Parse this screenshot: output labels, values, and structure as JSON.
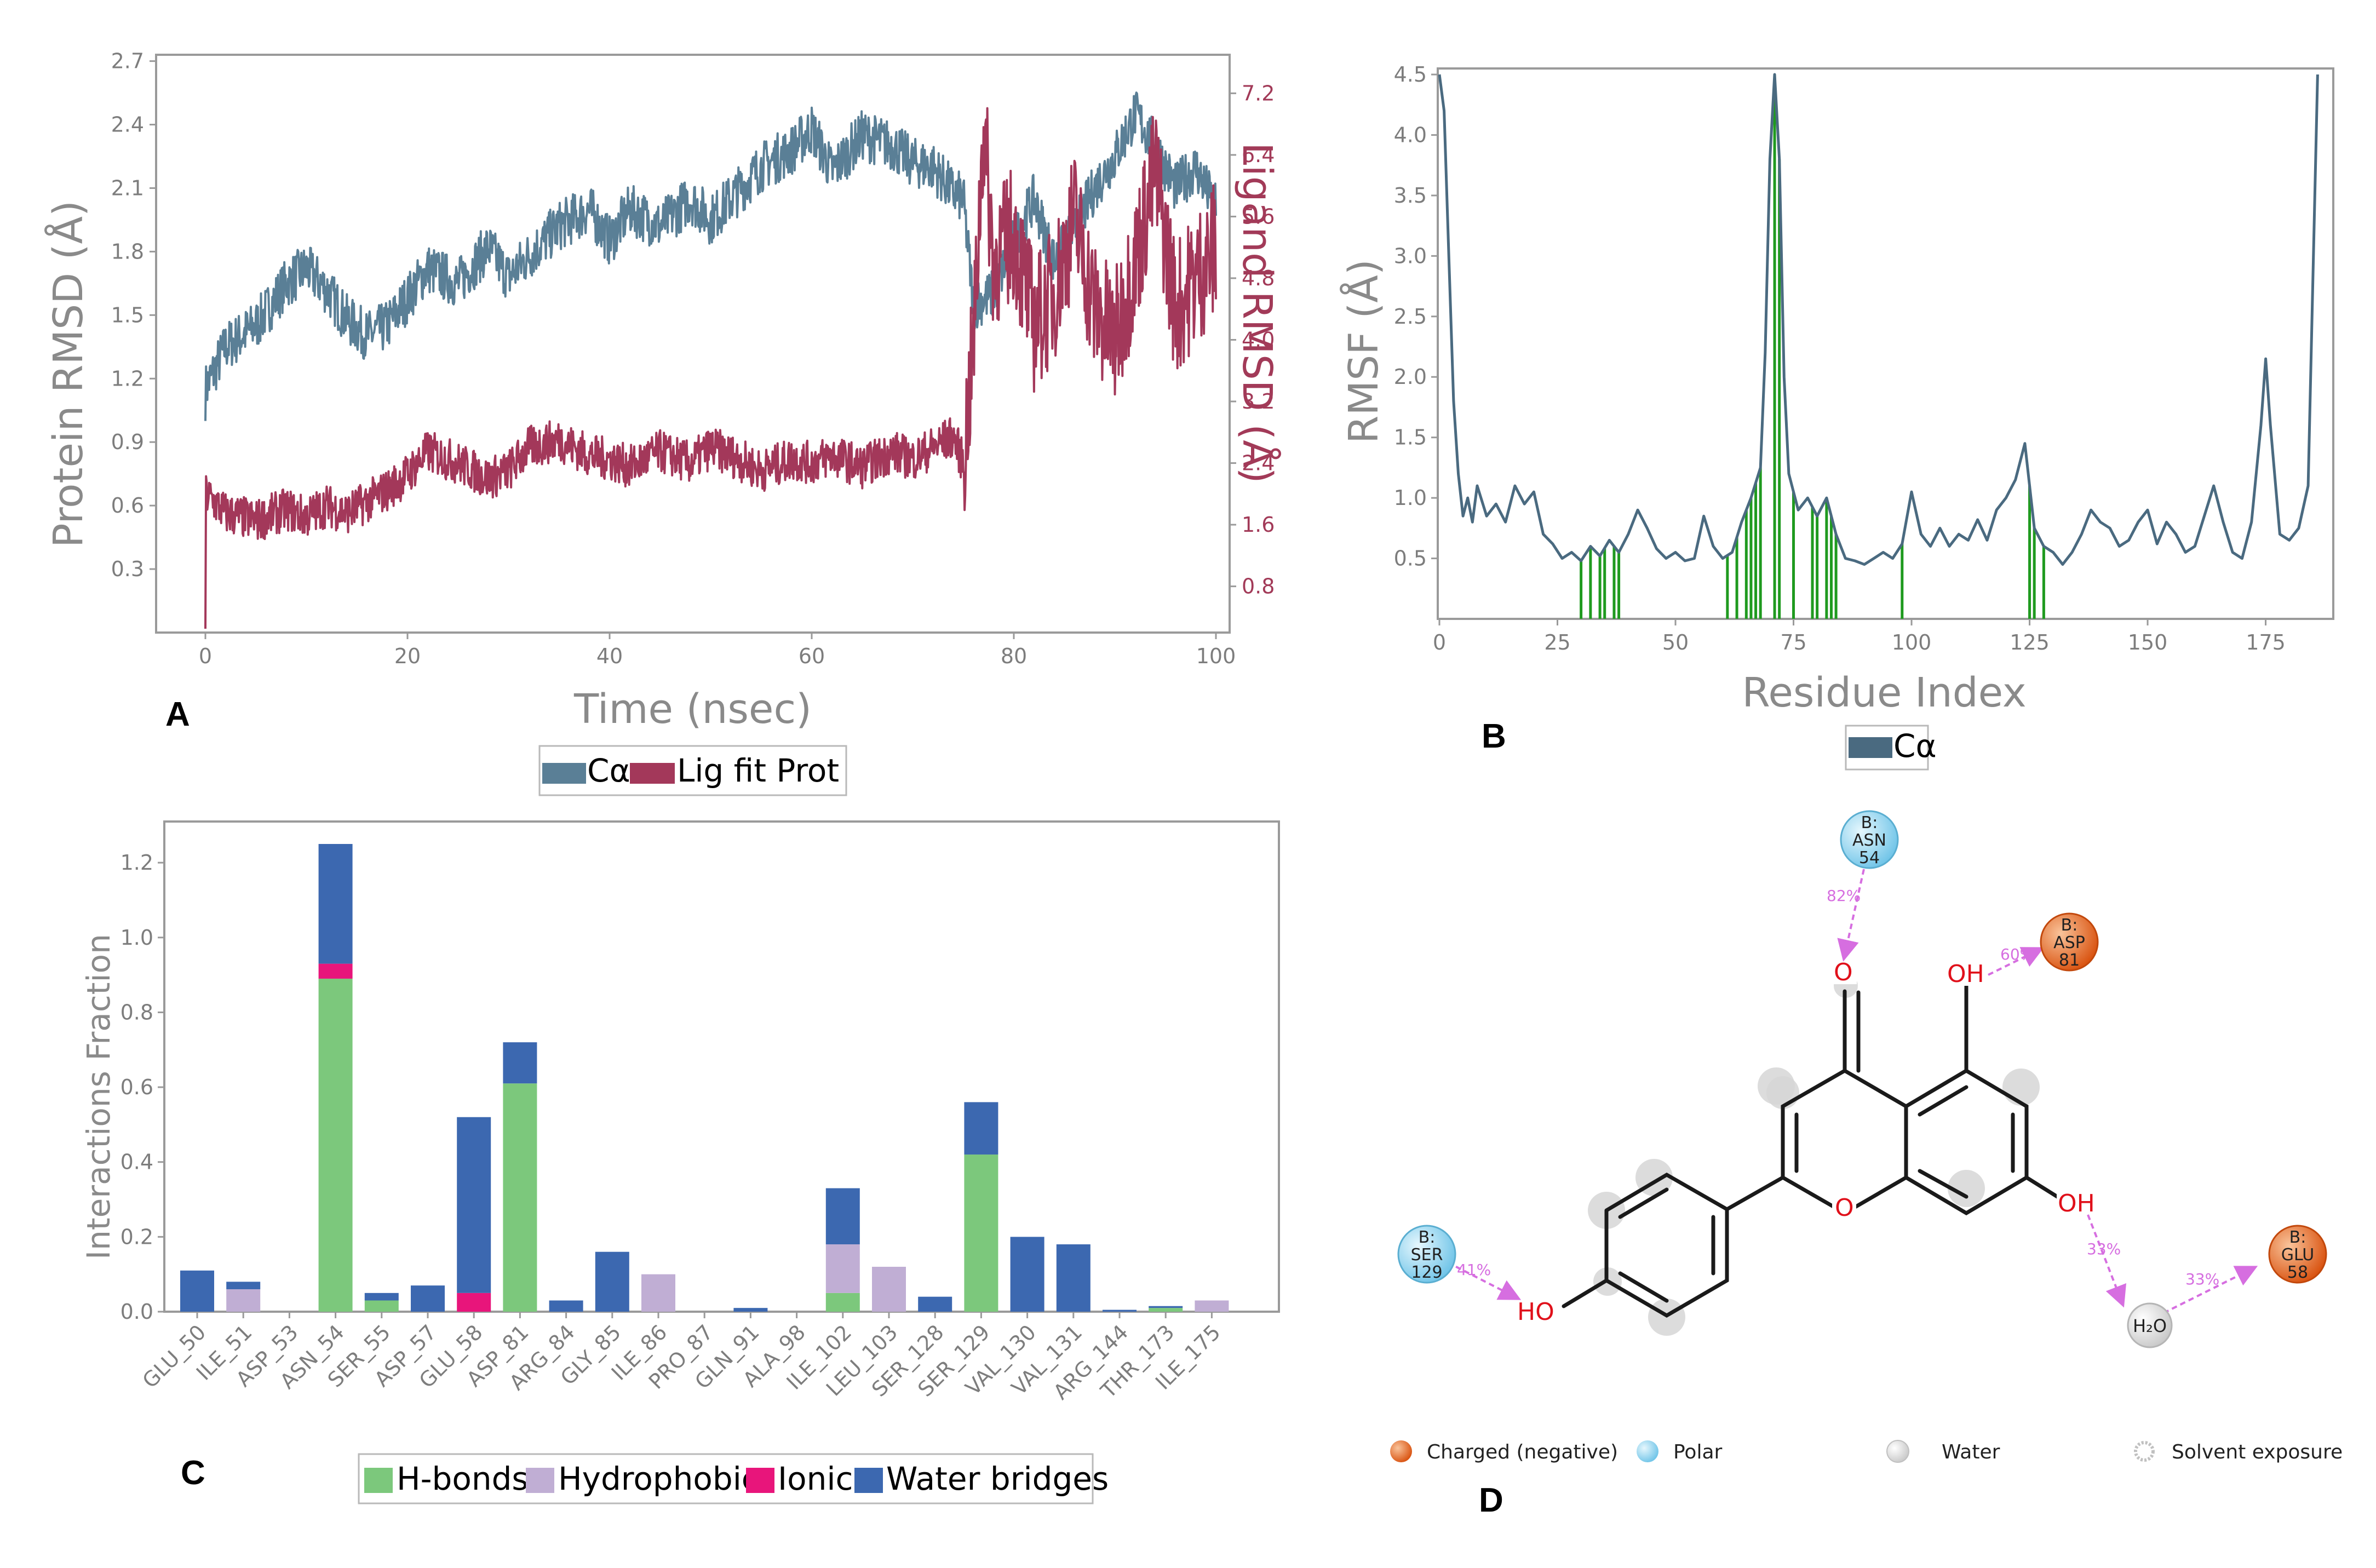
{
  "panels": {
    "a": "A",
    "b": "B",
    "c": "C",
    "d": "D"
  },
  "chart_data": [
    {
      "id": "A",
      "type": "line",
      "xlabel": "Time (nsec)",
      "ylabel": "Protein RMSD (Å)",
      "y2label": "Ligand RMSD (Å)",
      "xlim": [
        0,
        100
      ],
      "ylim": [
        0.0,
        2.73
      ],
      "y2lim": [
        0.2,
        7.7
      ],
      "xticks": [
        "0",
        "20",
        "40",
        "60",
        "80",
        "100"
      ],
      "yticks": [
        "0.3",
        "0.6",
        "0.9",
        "1.2",
        "1.5",
        "1.8",
        "2.1",
        "2.4",
        "2.7"
      ],
      "y2ticks": [
        "0.8",
        "1.6",
        "2.4",
        "3.2",
        "4.0",
        "4.8",
        "5.6",
        "6.4",
        "7.2"
      ],
      "legend": [
        "Cα",
        "Lig fit Prot"
      ],
      "series": [
        {
          "name": "Cα",
          "color": "#5a7f96",
          "x": [
            0,
            2,
            5,
            8,
            10,
            12,
            14,
            16,
            18,
            20,
            22,
            25,
            28,
            30,
            32,
            35,
            38,
            40,
            42,
            45,
            48,
            50,
            52,
            55,
            58,
            60,
            62,
            65,
            68,
            70,
            72,
            74,
            75,
            76,
            78,
            80,
            82,
            84,
            86,
            88,
            90,
            92,
            94,
            96,
            98,
            100
          ],
          "y": [
            1.15,
            1.35,
            1.45,
            1.65,
            1.72,
            1.62,
            1.48,
            1.4,
            1.45,
            1.58,
            1.72,
            1.65,
            1.82,
            1.68,
            1.78,
            1.92,
            2.0,
            1.85,
            2.0,
            1.92,
            2.05,
            1.95,
            2.05,
            2.2,
            2.28,
            2.38,
            2.18,
            2.35,
            2.3,
            2.22,
            2.2,
            2.08,
            2.05,
            1.55,
            1.6,
            1.85,
            2.05,
            1.75,
            1.9,
            2.1,
            2.25,
            2.45,
            2.3,
            2.1,
            2.2,
            2.0
          ]
        },
        {
          "name": "Lig fit Prot",
          "color": "#a3385a",
          "x": [
            0,
            2,
            5,
            8,
            10,
            12,
            14,
            16,
            18,
            20,
            22,
            25,
            28,
            30,
            32,
            35,
            38,
            40,
            42,
            45,
            48,
            50,
            52,
            55,
            58,
            60,
            62,
            65,
            68,
            70,
            72,
            74,
            75,
            76,
            77,
            78,
            80,
            82,
            84,
            86,
            88,
            90,
            92,
            94,
            96,
            98,
            100
          ],
          "y": [
            2.0,
            1.75,
            1.65,
            1.8,
            1.7,
            1.85,
            1.75,
            1.9,
            2.05,
            2.25,
            2.55,
            2.4,
            2.2,
            2.3,
            2.6,
            2.7,
            2.5,
            2.45,
            2.35,
            2.55,
            2.4,
            2.6,
            2.5,
            2.3,
            2.45,
            2.4,
            2.5,
            2.35,
            2.55,
            2.45,
            2.6,
            2.75,
            2.4,
            3.9,
            6.8,
            5.0,
            5.4,
            4.2,
            4.6,
            5.6,
            4.4,
            4.0,
            5.0,
            6.2,
            4.4,
            4.8,
            5.2
          ]
        }
      ]
    },
    {
      "id": "B",
      "type": "line",
      "xlabel": "Residue Index",
      "ylabel": "RMSF (Å)",
      "xlim": [
        0,
        187
      ],
      "ylim": [
        0,
        4.55
      ],
      "xticks": [
        "0",
        "25",
        "50",
        "75",
        "100",
        "125",
        "150",
        "175"
      ],
      "yticks": [
        "0.5",
        "1.0",
        "1.5",
        "2.0",
        "2.5",
        "3.0",
        "3.5",
        "4.0",
        "4.5"
      ],
      "legend": [
        "Cα"
      ],
      "series": [
        {
          "name": "Cα",
          "color": "#4a6a80",
          "x": [
            0,
            1,
            2,
            3,
            4,
            5,
            6,
            7,
            8,
            10,
            12,
            14,
            16,
            18,
            20,
            22,
            24,
            26,
            28,
            30,
            32,
            34,
            36,
            38,
            40,
            42,
            44,
            46,
            48,
            50,
            52,
            54,
            56,
            58,
            60,
            62,
            64,
            66,
            68,
            69,
            70,
            71,
            72,
            73,
            74,
            76,
            78,
            80,
            82,
            84,
            86,
            88,
            90,
            92,
            94,
            96,
            98,
            100,
            102,
            104,
            106,
            108,
            110,
            112,
            114,
            116,
            118,
            120,
            122,
            124,
            126,
            128,
            130,
            132,
            134,
            136,
            138,
            140,
            142,
            144,
            146,
            148,
            150,
            152,
            154,
            156,
            158,
            160,
            162,
            164,
            166,
            168,
            170,
            172,
            174,
            175,
            176,
            178,
            180,
            182,
            184,
            186
          ],
          "y": [
            4.5,
            4.2,
            3.0,
            1.8,
            1.2,
            0.85,
            1.0,
            0.8,
            1.1,
            0.85,
            0.95,
            0.8,
            1.1,
            0.95,
            1.05,
            0.7,
            0.62,
            0.5,
            0.55,
            0.48,
            0.6,
            0.52,
            0.65,
            0.55,
            0.7,
            0.9,
            0.75,
            0.58,
            0.5,
            0.55,
            0.48,
            0.5,
            0.85,
            0.6,
            0.5,
            0.55,
            0.8,
            1.0,
            1.25,
            2.2,
            3.8,
            4.5,
            3.8,
            2.0,
            1.2,
            0.9,
            1.0,
            0.85,
            1.0,
            0.7,
            0.5,
            0.48,
            0.45,
            0.5,
            0.55,
            0.5,
            0.62,
            1.05,
            0.7,
            0.6,
            0.75,
            0.6,
            0.7,
            0.65,
            0.82,
            0.65,
            0.9,
            1.0,
            1.15,
            1.45,
            0.75,
            0.6,
            0.55,
            0.45,
            0.55,
            0.7,
            0.9,
            0.8,
            0.75,
            0.6,
            0.65,
            0.8,
            0.9,
            0.62,
            0.8,
            0.7,
            0.55,
            0.6,
            0.85,
            1.1,
            0.8,
            0.55,
            0.5,
            0.8,
            1.6,
            2.15,
            1.6,
            0.7,
            0.65,
            0.75,
            1.1,
            4.5
          ]
        }
      ],
      "highlight_residues": [
        30,
        32,
        34,
        35,
        37,
        38,
        61,
        63,
        65,
        66,
        67,
        68,
        71,
        72,
        75,
        79,
        80,
        82,
        83,
        84,
        98,
        125,
        126,
        128
      ]
    },
    {
      "id": "C",
      "type": "bar",
      "stacked": true,
      "ylabel": "Interactions Fraction",
      "ylim": [
        0,
        1.31
      ],
      "yticks": [
        "0.0",
        "0.2",
        "0.4",
        "0.6",
        "0.8",
        "1.0",
        "1.2"
      ],
      "categories": [
        "GLU_50",
        "ILE_51",
        "ASP_53",
        "ASN_54",
        "SER_55",
        "ASP_57",
        "GLU_58",
        "ASP_81",
        "ARG_84",
        "GLY_85",
        "ILE_86",
        "PRO_87",
        "GLN_91",
        "ALA_98",
        "ILE_102",
        "LEU_103",
        "SER_128",
        "SER_129",
        "VAL_130",
        "VAL_131",
        "ARG_144",
        "THR_173",
        "ILE_175"
      ],
      "legend": [
        "H-bonds",
        "Hydrophobic",
        "Ionic",
        "Water bridges"
      ],
      "series": [
        {
          "name": "H-bonds",
          "color": "#7cc87c",
          "values": [
            0,
            0,
            0,
            0.89,
            0.03,
            0,
            0,
            0.61,
            0,
            0,
            0,
            0,
            0,
            0,
            0.05,
            0,
            0,
            0.42,
            0,
            0,
            0,
            0.01,
            0
          ]
        },
        {
          "name": "Hydrophobic",
          "color": "#c0aed4",
          "values": [
            0,
            0.06,
            0,
            0,
            0,
            0,
            0,
            0,
            0,
            0,
            0.1,
            0,
            0,
            0,
            0.13,
            0.12,
            0,
            0,
            0,
            0,
            0,
            0,
            0.03
          ]
        },
        {
          "name": "Ionic",
          "color": "#e8157b",
          "values": [
            0,
            0,
            0,
            0.04,
            0,
            0,
            0.05,
            0,
            0,
            0,
            0,
            0,
            0,
            0,
            0,
            0,
            0,
            0,
            0,
            0,
            0,
            0,
            0
          ]
        },
        {
          "name": "Water bridges",
          "color": "#3c68b0",
          "values": [
            0.11,
            0.02,
            0,
            0.32,
            0.02,
            0.07,
            0.47,
            0.11,
            0.03,
            0.16,
            0,
            0,
            0.01,
            0,
            0.15,
            0,
            0.04,
            0.14,
            0.2,
            0.18,
            0.005,
            0.005,
            0
          ]
        }
      ]
    }
  ],
  "diagram_d": {
    "residues": [
      {
        "chain": "B:",
        "name": "ASN",
        "num": "54",
        "kind": "polar",
        "pct": "82%"
      },
      {
        "chain": "B:",
        "name": "ASP",
        "num": "81",
        "kind": "charged",
        "pct": "60%"
      },
      {
        "chain": "B:",
        "name": "SER",
        "num": "129",
        "kind": "polar",
        "pct": "41%"
      },
      {
        "chain": "B:",
        "name": "GLU",
        "num": "58",
        "kind": "charged",
        "pct": "33%"
      }
    ],
    "water_pct": "33%",
    "atoms": {
      "o_ketone": "O",
      "oh_top": "OH",
      "o_ring": "O",
      "oh_right": "OH",
      "ho_left": "HO"
    },
    "water_label": "H₂O",
    "legend": [
      "Charged (negative)",
      "Polar",
      "Water",
      "Solvent exposure"
    ],
    "colors": {
      "polar": "#8fd3ef",
      "charged": "#e9671f",
      "water": "#e4e4e4"
    }
  }
}
